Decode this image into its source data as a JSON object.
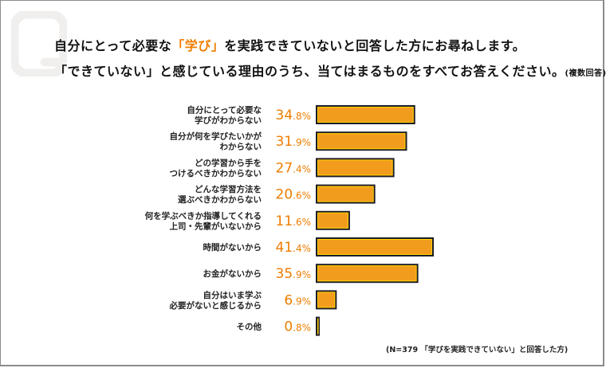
{
  "header": {
    "q_icon": "q-letter-icon",
    "line1_pre": "自分にとって必要な",
    "line1_highlight": "「学び」",
    "line1_post": "を実践できていないと回答した方にお尋ねします。",
    "line2_main": "「できていない」と感じている理由のうち、当てはまるものをすべてお答えください。",
    "line2_note": "(複数回答)"
  },
  "colors": {
    "bar_fill": "#f29c1e",
    "bar_border": "#1c1c2a",
    "bar_inner": "#ffd400",
    "value_text": "#ee7d00",
    "highlight": "#f07d00"
  },
  "chart_data": {
    "type": "bar",
    "orientation": "horizontal",
    "title": "「できていない」と感じている理由 (複数回答)",
    "unit": "%",
    "categories": [
      [
        "自分にとって必要な",
        "学びがわからない"
      ],
      [
        "自分が何を学びたいかが",
        "わからない"
      ],
      [
        "どの学習から手を",
        "つけるべきかわからない"
      ],
      [
        "どんな学習方法を",
        "選ぶべきかわからない"
      ],
      [
        "何を学ぶべきか指導してくれる",
        "上司・先輩がいないから"
      ],
      [
        "時間がないから"
      ],
      [
        "お金がないから"
      ],
      [
        "自分はいま学ぶ",
        "必要がないと感じるから"
      ],
      [
        "その他"
      ]
    ],
    "values": [
      34.8,
      31.9,
      27.4,
      20.6,
      11.6,
      41.4,
      35.9,
      6.9,
      0.8
    ],
    "value_labels": [
      {
        "int": "34",
        "dec": ".8%"
      },
      {
        "int": "31",
        "dec": ".9%"
      },
      {
        "int": "27",
        "dec": ".4%"
      },
      {
        "int": "20",
        "dec": ".6%"
      },
      {
        "int": "11",
        "dec": ".6%"
      },
      {
        "int": "41",
        "dec": ".4%"
      },
      {
        "int": "35",
        "dec": ".9%"
      },
      {
        "int": "6",
        "dec": ".9%"
      },
      {
        "int": "0",
        "dec": ".8%"
      }
    ],
    "xlim": [
      0,
      45
    ],
    "grid": false,
    "legend": "none"
  },
  "footnote": "(N=379 「学びを実践できていない」と回答した方)"
}
